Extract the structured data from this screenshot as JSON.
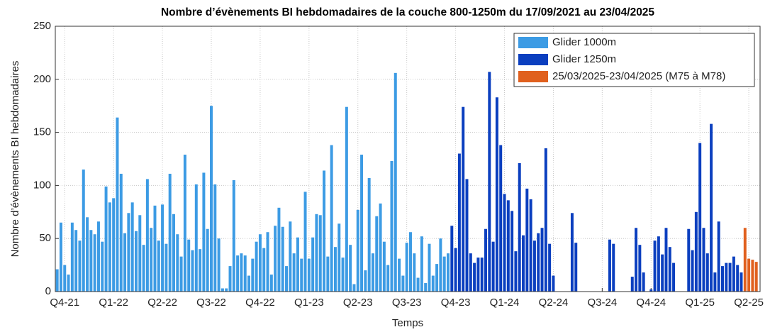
{
  "chart_data": {
    "type": "bar",
    "title": "Nombre d’évènements BI hebdomadaires de la couche 800-1250m du 17/09/2021 au 23/04/2025",
    "x_label": "Temps",
    "y_label": "Nombre d’évènements BI hebdomadaires",
    "xlim": [
      -0.5,
      187
    ],
    "xticks": [
      {
        "value": 2,
        "label": "Q4-21"
      },
      {
        "value": 15,
        "label": "Q1-22"
      },
      {
        "value": 28,
        "label": "Q2-22"
      },
      {
        "value": 41,
        "label": "Q3-22"
      },
      {
        "value": 54,
        "label": "Q4-22"
      },
      {
        "value": 67,
        "label": "Q1-23"
      },
      {
        "value": 80,
        "label": "Q2-23"
      },
      {
        "value": 93,
        "label": "Q3-23"
      },
      {
        "value": 106,
        "label": "Q4-23"
      },
      {
        "value": 119,
        "label": "Q1-24"
      },
      {
        "value": 132,
        "label": "Q2-24"
      },
      {
        "value": 145,
        "label": "Q3-24"
      },
      {
        "value": 158,
        "label": "Q4-24"
      },
      {
        "value": 171,
        "label": "Q1-25"
      },
      {
        "value": 184,
        "label": "Q2-25"
      }
    ],
    "ylim": [
      0,
      250
    ],
    "yticks": [
      0,
      50,
      100,
      150,
      200,
      250
    ],
    "grid": true,
    "legend": "upper right",
    "series": [
      {
        "name": "Glider 1000m",
        "color": "#3c9be4",
        "x": [
          0,
          1,
          2,
          3,
          4,
          5,
          6,
          7,
          8,
          9,
          10,
          11,
          12,
          13,
          14,
          15,
          16,
          17,
          18,
          19,
          20,
          21,
          22,
          23,
          24,
          25,
          26,
          27,
          28,
          29,
          30,
          31,
          32,
          33,
          34,
          35,
          36,
          37,
          38,
          39,
          40,
          41,
          42,
          43,
          44,
          45,
          46,
          47,
          48,
          49,
          50,
          51,
          52,
          53,
          54,
          55,
          56,
          57,
          58,
          59,
          60,
          61,
          62,
          63,
          64,
          65,
          66,
          67,
          68,
          69,
          70,
          71,
          72,
          73,
          74,
          75,
          76,
          77,
          78,
          79,
          80,
          81,
          82,
          83,
          84,
          85,
          86,
          87,
          88,
          89,
          90,
          91,
          92,
          93,
          94,
          95,
          96,
          97,
          98,
          99,
          100,
          101,
          102,
          103,
          104
        ],
        "values": [
          21,
          65,
          25,
          16,
          65,
          58,
          48,
          115,
          70,
          58,
          54,
          66,
          47,
          99,
          84,
          88,
          164,
          111,
          55,
          74,
          84,
          57,
          72,
          44,
          106,
          60,
          81,
          48,
          82,
          45,
          111,
          73,
          54,
          33,
          129,
          49,
          39,
          101,
          40,
          112,
          59,
          175,
          101,
          50,
          3,
          3,
          24,
          105,
          34,
          36,
          34,
          15,
          31,
          47,
          54,
          41,
          56,
          16,
          62,
          79,
          61,
          24,
          66,
          36,
          51,
          31,
          94,
          31,
          51,
          73,
          72,
          114,
          33,
          138,
          42,
          64,
          32,
          174,
          44,
          7,
          77,
          129,
          20,
          107,
          36,
          71,
          83,
          47,
          25,
          123,
          206,
          31,
          15,
          46,
          56,
          36,
          13,
          52,
          8,
          45,
          15,
          26,
          50,
          33,
          36
        ]
      },
      {
        "name": "Glider 1250m",
        "color": "#0b3fbf",
        "x": [
          105,
          106,
          107,
          108,
          109,
          110,
          111,
          112,
          113,
          114,
          115,
          116,
          117,
          118,
          119,
          120,
          121,
          122,
          123,
          124,
          125,
          126,
          127,
          128,
          129,
          130,
          131,
          132,
          137,
          138,
          147,
          148,
          153,
          154,
          155,
          156,
          158,
          159,
          160,
          161,
          162,
          163,
          164,
          168,
          169,
          170,
          171,
          172,
          173,
          174,
          175,
          176,
          177,
          178,
          179,
          180,
          181,
          182
        ],
        "values": [
          62,
          41,
          130,
          174,
          106,
          36,
          27,
          32,
          32,
          59,
          207,
          47,
          183,
          138,
          92,
          86,
          76,
          38,
          121,
          53,
          97,
          87,
          48,
          55,
          60,
          135,
          45,
          15,
          74,
          46,
          49,
          45,
          14,
          60,
          44,
          18,
          2,
          48,
          52,
          35,
          60,
          42,
          27,
          59,
          39,
          75,
          140,
          60,
          36,
          158,
          18,
          66,
          24,
          27,
          27,
          33,
          25,
          18
        ]
      },
      {
        "name": "25/03/2025-23/04/2025 (M75 à M78)",
        "color": "#e0601e",
        "x": [
          183,
          184,
          185,
          186
        ],
        "values": [
          60,
          31,
          30,
          28
        ]
      }
    ]
  }
}
